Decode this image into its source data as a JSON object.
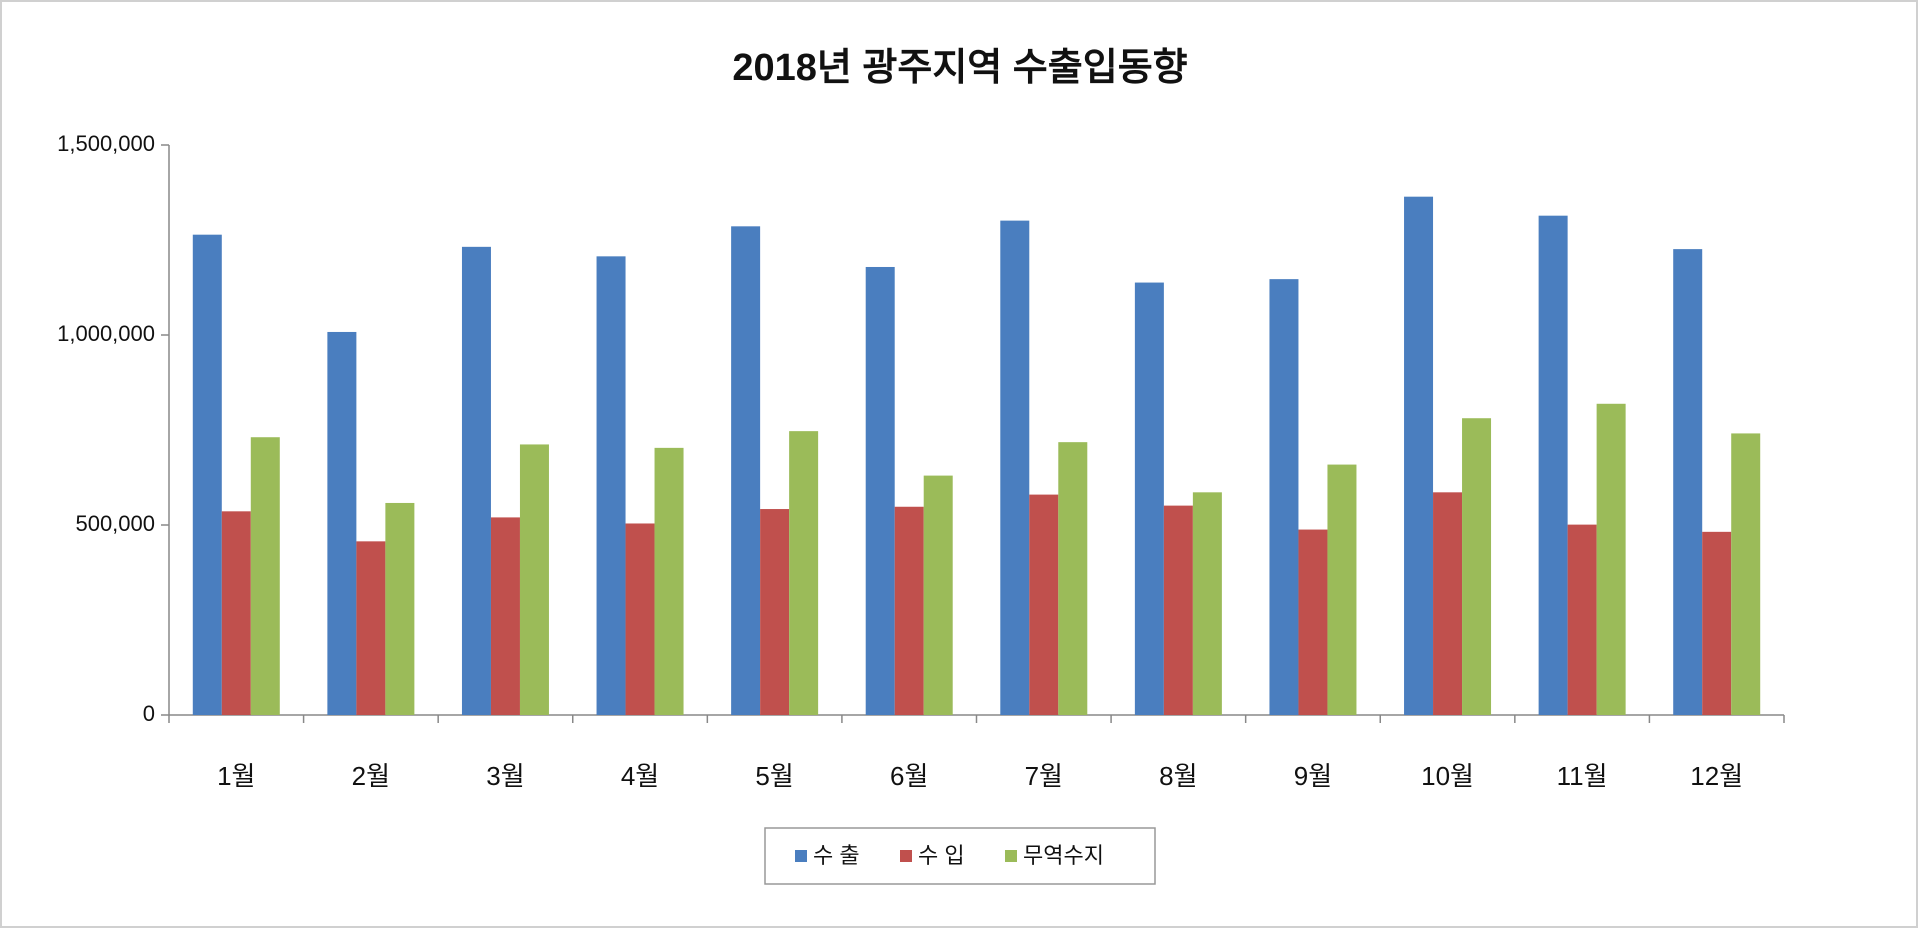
{
  "chart_data": {
    "type": "bar",
    "title": "2018년 광주지역 수출입동향",
    "categories": [
      "1월",
      "2월",
      "3월",
      "4월",
      "5월",
      "6월",
      "7월",
      "8월",
      "9월",
      "10월",
      "11월",
      "12월"
    ],
    "series": [
      {
        "name": "수 출",
        "color": "#4a7ebf",
        "values": [
          1264000,
          1008000,
          1232000,
          1207000,
          1286000,
          1179000,
          1301000,
          1138000,
          1147000,
          1364000,
          1314000,
          1226000
        ]
      },
      {
        "name": "수 입",
        "color": "#c0504d",
        "values": [
          536000,
          457000,
          520000,
          504000,
          542000,
          548000,
          580000,
          551000,
          488000,
          586000,
          501000,
          482000
        ]
      },
      {
        "name": "무역수지",
        "color": "#9bbb59",
        "values": [
          731000,
          558000,
          712000,
          703000,
          747000,
          630000,
          718000,
          586000,
          659000,
          781000,
          819000,
          741000
        ]
      }
    ],
    "ylim": [
      0,
      1500000
    ],
    "yticks": [
      0,
      {
        "value": 500000,
        "label": "500,000"
      },
      {
        "value": 1000000,
        "label": "1,000,000"
      },
      {
        "value": 1500000,
        "label": "1,500,000"
      }
    ],
    "legend": "bottom"
  }
}
